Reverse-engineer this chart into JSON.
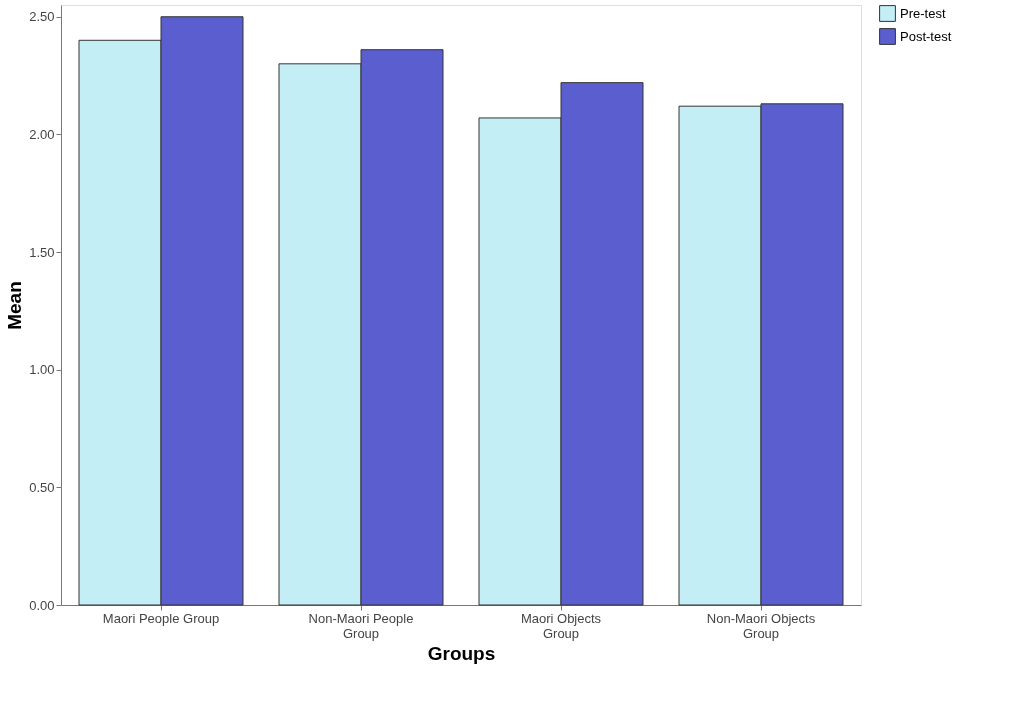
{
  "chart_data": {
    "type": "bar",
    "xlabel": "Groups",
    "ylabel": "Mean",
    "categories": [
      "Maori People  Group",
      "Non-Maori  People\nGroup",
      "Maori Objects\nGroup",
      "Non-Maori Objects\nGroup"
    ],
    "series": [
      {
        "name": "Pre-test",
        "color": "#c4eef6",
        "values": [
          2.4,
          2.3,
          2.07,
          2.12
        ]
      },
      {
        "name": "Post-test",
        "color": "#5a5ecf",
        "values": [
          2.5,
          2.36,
          2.22,
          2.13
        ]
      }
    ],
    "ylim": [
      0,
      2.55
    ],
    "yticks": [
      {
        "value": 0,
        "label": "0.00"
      },
      {
        "value": 0.5,
        "label": "0.50"
      },
      {
        "value": 1,
        "label": "1.00"
      },
      {
        "value": 1.5,
        "label": "1.50"
      },
      {
        "value": 2,
        "label": "2.00"
      },
      {
        "value": 2.5,
        "label": "2.50"
      }
    ],
    "grid": false,
    "legend": "top right"
  }
}
